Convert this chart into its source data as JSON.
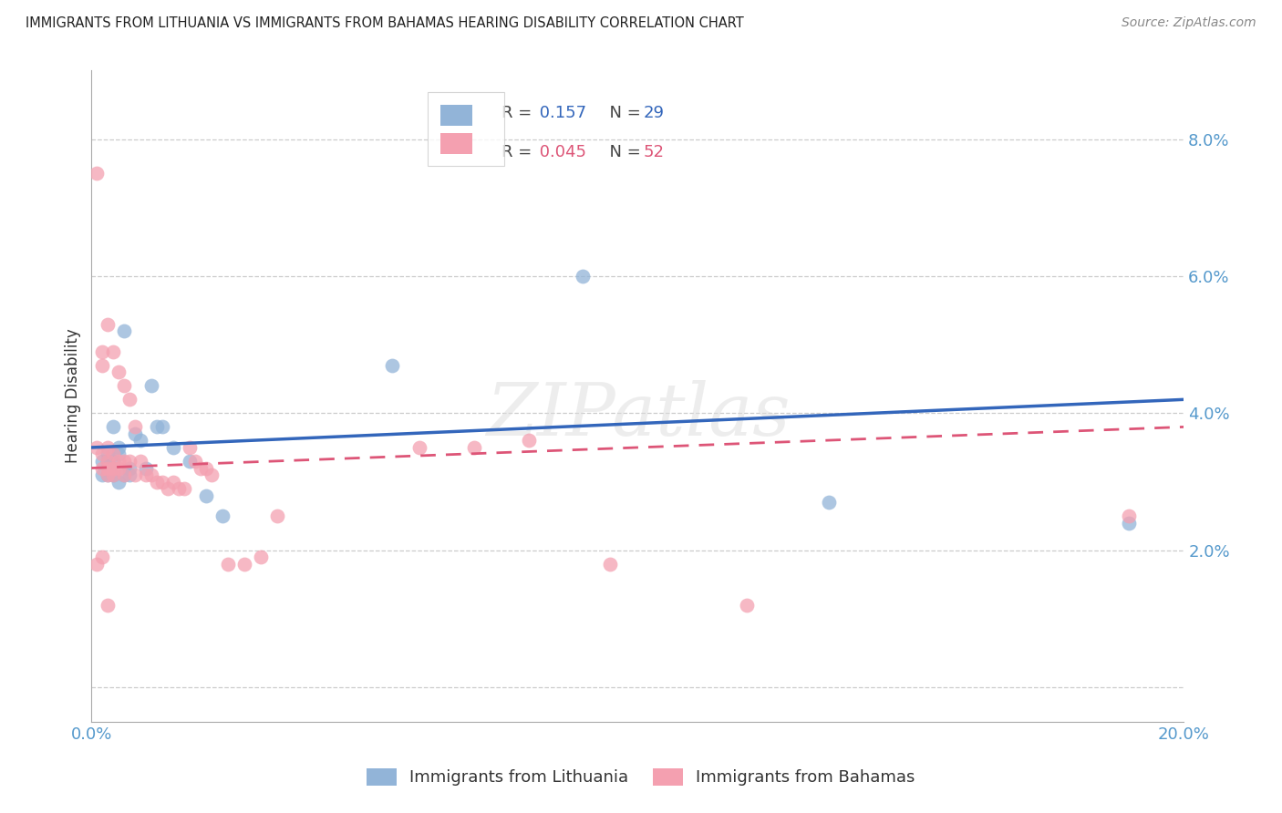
{
  "title": "IMMIGRANTS FROM LITHUANIA VS IMMIGRANTS FROM BAHAMAS HEARING DISABILITY CORRELATION CHART",
  "source": "Source: ZipAtlas.com",
  "ylabel_label": "Hearing Disability",
  "xlim": [
    0.0,
    0.2
  ],
  "ylim": [
    -0.005,
    0.09
  ],
  "xticks": [
    0.0,
    0.04,
    0.08,
    0.12,
    0.16,
    0.2
  ],
  "yticks": [
    0.0,
    0.02,
    0.04,
    0.06,
    0.08
  ],
  "ytick_labels": [
    "",
    "2.0%",
    "4.0%",
    "6.0%",
    "8.0%"
  ],
  "xtick_labels": [
    "0.0%",
    "",
    "",
    "",
    "",
    "20.0%"
  ],
  "legend_blue_R": "0.157",
  "legend_blue_N": "29",
  "legend_pink_R": "0.045",
  "legend_pink_N": "52",
  "blue_color": "#92B4D8",
  "pink_color": "#F4A0B0",
  "blue_line_color": "#3366BB",
  "pink_line_color": "#DD5577",
  "axis_color": "#5599CC",
  "grid_color": "#CCCCCC",
  "watermark": "ZIPatlas",
  "scatter_blue_x": [
    0.002,
    0.002,
    0.003,
    0.003,
    0.003,
    0.004,
    0.004,
    0.004,
    0.005,
    0.005,
    0.005,
    0.006,
    0.006,
    0.007,
    0.007,
    0.008,
    0.009,
    0.01,
    0.011,
    0.012,
    0.013,
    0.015,
    0.018,
    0.021,
    0.024,
    0.055,
    0.09,
    0.135,
    0.19
  ],
  "scatter_blue_y": [
    0.033,
    0.031,
    0.034,
    0.033,
    0.031,
    0.038,
    0.033,
    0.031,
    0.035,
    0.034,
    0.03,
    0.052,
    0.031,
    0.032,
    0.031,
    0.037,
    0.036,
    0.032,
    0.044,
    0.038,
    0.038,
    0.035,
    0.033,
    0.028,
    0.025,
    0.047,
    0.06,
    0.027,
    0.024
  ],
  "scatter_pink_x": [
    0.001,
    0.001,
    0.002,
    0.002,
    0.002,
    0.002,
    0.003,
    0.003,
    0.003,
    0.003,
    0.003,
    0.004,
    0.004,
    0.004,
    0.004,
    0.005,
    0.005,
    0.005,
    0.006,
    0.006,
    0.006,
    0.007,
    0.007,
    0.008,
    0.008,
    0.009,
    0.01,
    0.011,
    0.012,
    0.013,
    0.014,
    0.015,
    0.016,
    0.017,
    0.018,
    0.019,
    0.02,
    0.021,
    0.022,
    0.025,
    0.028,
    0.031,
    0.034,
    0.06,
    0.07,
    0.08,
    0.095,
    0.12,
    0.19,
    0.003,
    0.001,
    0.002
  ],
  "scatter_pink_y": [
    0.075,
    0.035,
    0.049,
    0.047,
    0.034,
    0.032,
    0.053,
    0.035,
    0.033,
    0.032,
    0.031,
    0.049,
    0.034,
    0.032,
    0.031,
    0.046,
    0.033,
    0.032,
    0.044,
    0.033,
    0.031,
    0.042,
    0.033,
    0.038,
    0.031,
    0.033,
    0.031,
    0.031,
    0.03,
    0.03,
    0.029,
    0.03,
    0.029,
    0.029,
    0.035,
    0.033,
    0.032,
    0.032,
    0.031,
    0.018,
    0.018,
    0.019,
    0.025,
    0.035,
    0.035,
    0.036,
    0.018,
    0.012,
    0.025,
    0.012,
    0.018,
    0.019
  ],
  "blue_line_x": [
    0.0,
    0.2
  ],
  "blue_line_y": [
    0.035,
    0.042
  ],
  "pink_line_x": [
    0.0,
    0.2
  ],
  "pink_line_y": [
    0.032,
    0.038
  ]
}
